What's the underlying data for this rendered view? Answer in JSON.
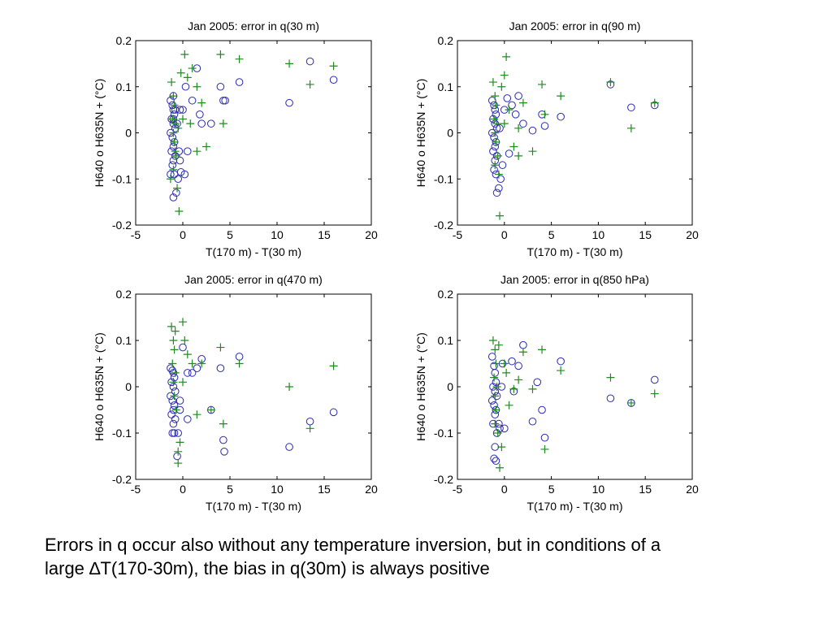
{
  "caption": {
    "line1": "Errors in q occur also without any temperature inversion, but in conditions of a",
    "line2": "large ∆T(170-30m), the bias in q(30m) is always positive"
  },
  "legend": {
    "circle_label": "H640 o",
    "plus_label": "H635N + (°C)"
  },
  "colors": {
    "circle": "#2b2bb0",
    "plus": "#1f8a1f",
    "axis": "#000000"
  },
  "chart_data": [
    {
      "type": "scatter",
      "title": "Jan 2005: error in q(30 m)",
      "xlabel": "T(170 m) - T(30 m)",
      "ylabel": "H640 o   H635N + (°C)",
      "xlim": [
        -5,
        20
      ],
      "ylim": [
        -0.2,
        0.2
      ],
      "xticks": [
        -5,
        0,
        5,
        10,
        15,
        20
      ],
      "yticks": [
        -0.2,
        -0.1,
        0,
        0.1,
        0.2
      ],
      "grid": false,
      "series": [
        {
          "marker": "circle",
          "x": [
            -1.3,
            -1.1,
            -1.0,
            -0.9,
            -1.2,
            -1.0,
            -0.8,
            -1.3,
            -1.1,
            -0.9,
            -1.0,
            -1.2,
            -0.8,
            -1.0,
            -1.1,
            -0.9,
            -1.3,
            -1.0,
            -0.7,
            -0.5,
            -0.4,
            -1.0,
            -0.8,
            -0.3,
            0.0,
            0.3,
            1.0,
            1.5,
            1.8,
            2.0,
            3.0,
            4.0,
            4.3,
            4.5,
            6.0,
            11.3,
            13.5,
            16.0,
            -1.0,
            -0.6,
            -0.3,
            0.5,
            -0.2,
            0.2
          ],
          "y": [
            0.07,
            0.06,
            0.05,
            0.04,
            0.03,
            0.02,
            0.01,
            0.0,
            -0.01,
            -0.02,
            -0.03,
            -0.04,
            -0.05,
            -0.06,
            -0.07,
            -0.09,
            -0.09,
            -0.14,
            -0.13,
            -0.1,
            -0.04,
            0.08,
            0.05,
            0.05,
            0.05,
            0.1,
            0.07,
            0.14,
            0.04,
            0.02,
            0.02,
            0.1,
            0.07,
            0.07,
            0.11,
            0.065,
            0.155,
            0.115,
            0.03,
            0.02,
            -0.06,
            -0.04,
            -0.085,
            -0.09
          ]
        },
        {
          "marker": "plus",
          "x": [
            -1.2,
            -1.0,
            -0.9,
            -1.1,
            -0.8,
            -1.0,
            -0.9,
            -0.7,
            -1.3,
            -0.6,
            -0.4,
            -0.2,
            0.2,
            0.5,
            0.8,
            1.0,
            1.5,
            2.0,
            2.5,
            4.0,
            4.3,
            6.0,
            11.3,
            13.5,
            16.0,
            -1.0,
            -0.8,
            -0.5,
            0.0,
            1.5
          ],
          "y": [
            0.11,
            0.08,
            0.06,
            0.03,
            0.02,
            0.0,
            -0.02,
            -0.05,
            -0.1,
            -0.12,
            -0.17,
            0.13,
            0.17,
            0.12,
            0.02,
            0.14,
            0.1,
            0.065,
            -0.03,
            0.17,
            0.02,
            0.16,
            0.15,
            0.105,
            0.145,
            -0.08,
            -0.04,
            0.01,
            0.03,
            -0.04
          ]
        }
      ]
    },
    {
      "type": "scatter",
      "title": "Jan 2005: error in q(90 m)",
      "xlabel": "T(170 m) - T(30 m)",
      "ylabel": "H640 o   H635N + (°C)",
      "xlim": [
        -5,
        20
      ],
      "ylim": [
        -0.2,
        0.2
      ],
      "xticks": [
        -5,
        0,
        5,
        10,
        15,
        20
      ],
      "yticks": [
        -0.2,
        -0.1,
        0,
        0.1,
        0.2
      ],
      "grid": false,
      "series": [
        {
          "marker": "circle",
          "x": [
            -1.3,
            -1.1,
            -1.0,
            -0.9,
            -1.2,
            -1.0,
            -0.8,
            -1.3,
            -1.1,
            -0.9,
            -1.0,
            -1.2,
            -0.8,
            -1.0,
            -1.1,
            -0.9,
            -0.6,
            -0.8,
            -0.4,
            0.0,
            0.3,
            0.8,
            1.2,
            1.5,
            2.0,
            3.0,
            4.0,
            4.3,
            6.0,
            11.3,
            13.5,
            16.0,
            -0.2,
            0.5,
            -0.5
          ],
          "y": [
            0.07,
            0.06,
            0.05,
            0.04,
            0.03,
            0.02,
            0.01,
            0.0,
            -0.01,
            -0.02,
            -0.03,
            -0.04,
            -0.05,
            -0.06,
            -0.08,
            -0.09,
            -0.12,
            -0.13,
            -0.1,
            0.05,
            0.075,
            0.06,
            0.04,
            0.08,
            0.02,
            0.005,
            0.04,
            0.015,
            0.035,
            0.105,
            0.055,
            0.06,
            -0.07,
            -0.045,
            0.01
          ]
        },
        {
          "marker": "plus",
          "x": [
            -1.2,
            -1.0,
            -0.9,
            -1.1,
            -0.8,
            -1.0,
            -0.9,
            -0.7,
            -0.5,
            -0.3,
            0.0,
            0.2,
            0.5,
            1.0,
            1.5,
            2.0,
            3.0,
            4.0,
            4.3,
            6.0,
            11.3,
            13.5,
            16.0,
            -1.0,
            -0.6,
            0.0,
            1.5
          ],
          "y": [
            0.11,
            0.08,
            0.06,
            0.03,
            0.02,
            0.0,
            -0.02,
            -0.05,
            -0.18,
            0.1,
            0.125,
            0.165,
            0.05,
            -0.03,
            -0.05,
            0.065,
            -0.04,
            0.105,
            0.04,
            0.08,
            0.11,
            0.01,
            0.065,
            -0.07,
            -0.09,
            0.02,
            0.01
          ]
        }
      ]
    },
    {
      "type": "scatter",
      "title": "Jan 2005: error in q(470 m)",
      "xlabel": "T(170 m) - T(30 m)",
      "ylabel": "H640 o   H635N + (°C)",
      "xlim": [
        -5,
        20
      ],
      "ylim": [
        -0.2,
        0.2
      ],
      "xticks": [
        -5,
        0,
        5,
        10,
        15,
        20
      ],
      "yticks": [
        -0.2,
        -0.1,
        0,
        0.1,
        0.2
      ],
      "grid": false,
      "series": [
        {
          "marker": "circle",
          "x": [
            -1.3,
            -1.1,
            -1.0,
            -0.9,
            -1.2,
            -1.0,
            -0.8,
            -1.3,
            -1.1,
            -0.9,
            -1.0,
            -1.2,
            -0.8,
            -1.0,
            -1.1,
            -0.9,
            -0.6,
            -0.5,
            -0.3,
            0.0,
            0.5,
            1.0,
            1.5,
            2.0,
            3.0,
            4.0,
            4.3,
            4.4,
            6.0,
            11.3,
            13.5,
            16.0,
            -0.3,
            0.5
          ],
          "y": [
            0.04,
            0.035,
            0.03,
            0.02,
            0.01,
            0.0,
            -0.01,
            -0.02,
            -0.03,
            -0.04,
            -0.05,
            -0.06,
            -0.07,
            -0.08,
            -0.1,
            -0.1,
            -0.15,
            -0.1,
            -0.05,
            0.085,
            0.03,
            0.03,
            0.04,
            0.06,
            -0.05,
            0.04,
            -0.115,
            -0.14,
            0.065,
            -0.13,
            -0.075,
            -0.055,
            -0.03,
            -0.07
          ]
        },
        {
          "marker": "plus",
          "x": [
            -1.2,
            -1.0,
            -0.9,
            -1.1,
            -0.8,
            -1.0,
            -0.9,
            -0.7,
            -0.5,
            -0.3,
            0.0,
            0.2,
            0.5,
            1.0,
            1.5,
            2.0,
            3.0,
            4.0,
            4.3,
            6.0,
            11.3,
            13.5,
            16.0,
            -0.8,
            -0.5,
            0.0
          ],
          "y": [
            0.13,
            0.1,
            0.08,
            0.05,
            0.03,
            0.01,
            -0.02,
            -0.05,
            -0.165,
            -0.12,
            0.14,
            0.1,
            0.07,
            0.05,
            -0.06,
            0.05,
            -0.05,
            0.085,
            -0.08,
            0.05,
            0.0,
            -0.09,
            0.045,
            0.12,
            -0.14,
            0.01
          ]
        }
      ]
    },
    {
      "type": "scatter",
      "title": "Jan 2005: error in q(850 hPa)",
      "xlabel": "T(170 m) - T(30 m)",
      "ylabel": "H640 o   H635N + (°C)",
      "xlim": [
        -5,
        20
      ],
      "ylim": [
        -0.2,
        0.2
      ],
      "xticks": [
        -5,
        0,
        5,
        10,
        15,
        20
      ],
      "yticks": [
        -0.2,
        -0.1,
        0,
        0.1,
        0.2
      ],
      "grid": false,
      "series": [
        {
          "marker": "circle",
          "x": [
            -1.3,
            -1.1,
            -1.0,
            -0.9,
            -1.2,
            -1.0,
            -0.8,
            -1.3,
            -1.1,
            -0.9,
            -1.0,
            -1.2,
            -0.8,
            -1.0,
            -1.1,
            -0.9,
            -0.6,
            -0.5,
            -0.2,
            0.0,
            0.8,
            1.5,
            2.0,
            3.0,
            3.5,
            4.0,
            4.3,
            6.0,
            11.3,
            13.5,
            16.0,
            -0.3,
            1.0
          ],
          "y": [
            0.065,
            0.045,
            0.03,
            0.01,
            0.0,
            -0.01,
            -0.02,
            -0.03,
            -0.04,
            -0.05,
            -0.06,
            -0.08,
            -0.1,
            -0.13,
            -0.155,
            -0.16,
            -0.08,
            -0.09,
            0.05,
            -0.09,
            0.055,
            0.045,
            0.09,
            -0.075,
            0.01,
            -0.05,
            -0.11,
            0.055,
            -0.025,
            -0.035,
            0.015,
            0.0,
            -0.01
          ]
        },
        {
          "marker": "plus",
          "x": [
            -1.2,
            -1.0,
            -0.9,
            -1.1,
            -0.8,
            -1.0,
            -0.9,
            -0.7,
            -0.5,
            -0.3,
            0.0,
            0.2,
            0.5,
            1.0,
            1.5,
            2.0,
            3.0,
            4.0,
            4.3,
            6.0,
            11.3,
            13.5,
            16.0,
            -1.0,
            -0.6
          ],
          "y": [
            0.1,
            0.08,
            0.05,
            0.02,
            0.0,
            -0.02,
            -0.05,
            -0.1,
            -0.175,
            -0.13,
            0.05,
            0.03,
            -0.04,
            -0.005,
            0.015,
            0.075,
            -0.005,
            0.08,
            -0.135,
            0.035,
            0.02,
            -0.035,
            -0.015,
            -0.08,
            0.09
          ]
        }
      ]
    }
  ]
}
